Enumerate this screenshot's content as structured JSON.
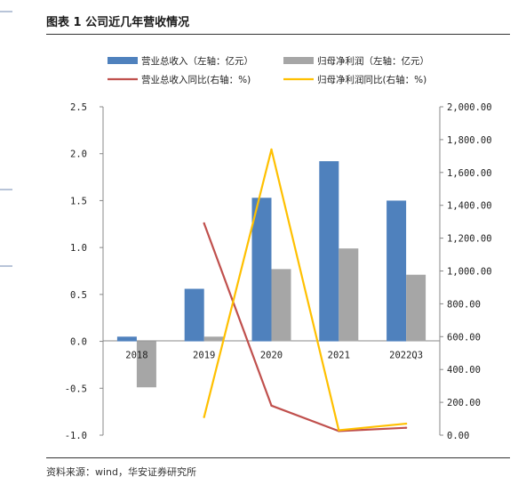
{
  "header": {
    "title": "图表 1 公司近几年营收情况"
  },
  "footer": {
    "source": "资料来源：wind，华安证券研究所"
  },
  "colors": {
    "revenue": "#4f81bd",
    "profit": "#a6a6a6",
    "revenue_growth": "#c0504d",
    "profit_growth": "#ffc000"
  },
  "chart_data": {
    "type": "bar",
    "categories": [
      "2018",
      "2019",
      "2020",
      "2021",
      "2022Q3"
    ],
    "series": [
      {
        "name": "营业总收入（左轴：亿元）",
        "type": "bar",
        "axis": "left",
        "values": [
          0.05,
          0.56,
          1.53,
          1.92,
          1.5
        ]
      },
      {
        "name": "归母净利润（左轴：亿元）",
        "type": "bar",
        "axis": "left",
        "values": [
          -0.49,
          0.05,
          0.77,
          0.99,
          0.71
        ]
      },
      {
        "name": "营业总收入同比(右轴：%)",
        "type": "line",
        "axis": "right",
        "values": [
          null,
          1290,
          180,
          25,
          45
        ]
      },
      {
        "name": "归母净利润同比(右轴：%)",
        "type": "line",
        "axis": "right",
        "values": [
          null,
          110,
          1740,
          30,
          70
        ]
      }
    ],
    "y_left": {
      "min": -1.0,
      "max": 2.5,
      "step": 0.5,
      "ticks": [
        "2.5",
        "2.0",
        "1.5",
        "1.0",
        "0.5",
        "0.0",
        "-0.5",
        "-1.0"
      ]
    },
    "y_right": {
      "min": 0,
      "max": 2000,
      "step": 200,
      "ticks": [
        "2,000.00",
        "1,800.00",
        "1,600.00",
        "1,400.00",
        "1,200.00",
        "1,000.00",
        "800.00",
        "600.00",
        "400.00",
        "200.00",
        "0.00"
      ]
    },
    "grid": false,
    "legend_position": "top"
  }
}
